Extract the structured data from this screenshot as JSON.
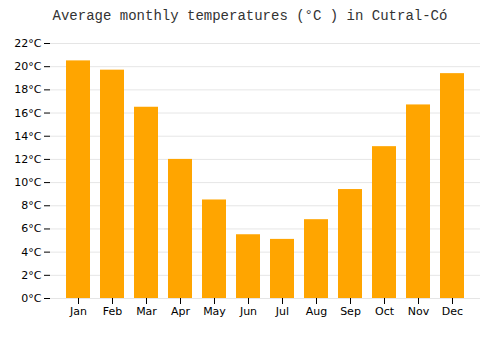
{
  "chart_data": {
    "type": "bar",
    "title": "Average monthly temperatures (°C ) in Cutral-Có",
    "categories": [
      "Jan",
      "Feb",
      "Mar",
      "Apr",
      "May",
      "Jun",
      "Jul",
      "Aug",
      "Sep",
      "Oct",
      "Nov",
      "Dec"
    ],
    "values": [
      20.5,
      19.7,
      16.5,
      12.0,
      8.5,
      5.5,
      5.1,
      6.8,
      9.4,
      13.1,
      16.7,
      19.4
    ],
    "color": "#FFA500",
    "ylim": [
      0,
      22
    ],
    "yticks": [
      {
        "value": 0,
        "label": "0°C"
      },
      {
        "value": 2,
        "label": "2°C"
      },
      {
        "value": 4,
        "label": "4°C"
      },
      {
        "value": 6,
        "label": "6°C"
      },
      {
        "value": 8,
        "label": "8°C"
      },
      {
        "value": 10,
        "label": "10°C"
      },
      {
        "value": 12,
        "label": "12°C"
      },
      {
        "value": 14,
        "label": "14°C"
      },
      {
        "value": 16,
        "label": "16°C"
      },
      {
        "value": 18,
        "label": "18°C"
      },
      {
        "value": 20,
        "label": "20°C"
      },
      {
        "value": 22,
        "label": "22°C"
      }
    ],
    "grid": true
  }
}
